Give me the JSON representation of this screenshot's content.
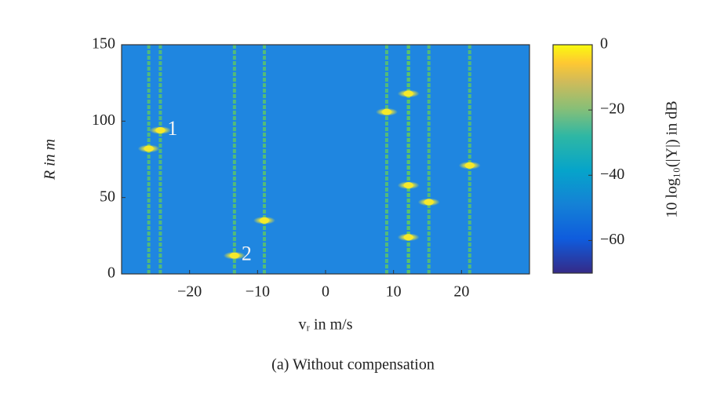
{
  "chart_data": {
    "type": "scatter",
    "caption": "(a) Without compensation",
    "x_label": "vᵣ in m/s",
    "y_label": "R in m",
    "colorbar_label": "10 log₁₀(|Y|) in dB",
    "background_color": "#1f86e0",
    "stripe_color": "#5cc46a",
    "color": "#f6e92a",
    "series": [
      {
        "x": [
          -26,
          -24.3,
          -13.4,
          -9,
          9,
          12.2,
          12.2,
          12.2,
          15.2,
          21.2
        ],
        "y": [
          82,
          94,
          12,
          35,
          106,
          118,
          58,
          24,
          47,
          71
        ],
        "point_labels": [
          null,
          "1",
          "2",
          null,
          null,
          null,
          null,
          null,
          null,
          null
        ]
      }
    ],
    "xlim": [
      -30,
      30
    ],
    "xticks": [
      {
        "value": -20,
        "label": "−20"
      },
      {
        "value": -10,
        "label": "−10"
      },
      0,
      10,
      20
    ],
    "ylim": [
      0,
      150
    ],
    "yticks": [
      0,
      50,
      100,
      150
    ],
    "clim": [
      -70,
      0
    ],
    "cticks": [
      0,
      {
        "value": -20,
        "label": "−20"
      },
      {
        "value": -40,
        "label": "−40"
      },
      {
        "value": -60,
        "label": "−60"
      }
    ]
  }
}
